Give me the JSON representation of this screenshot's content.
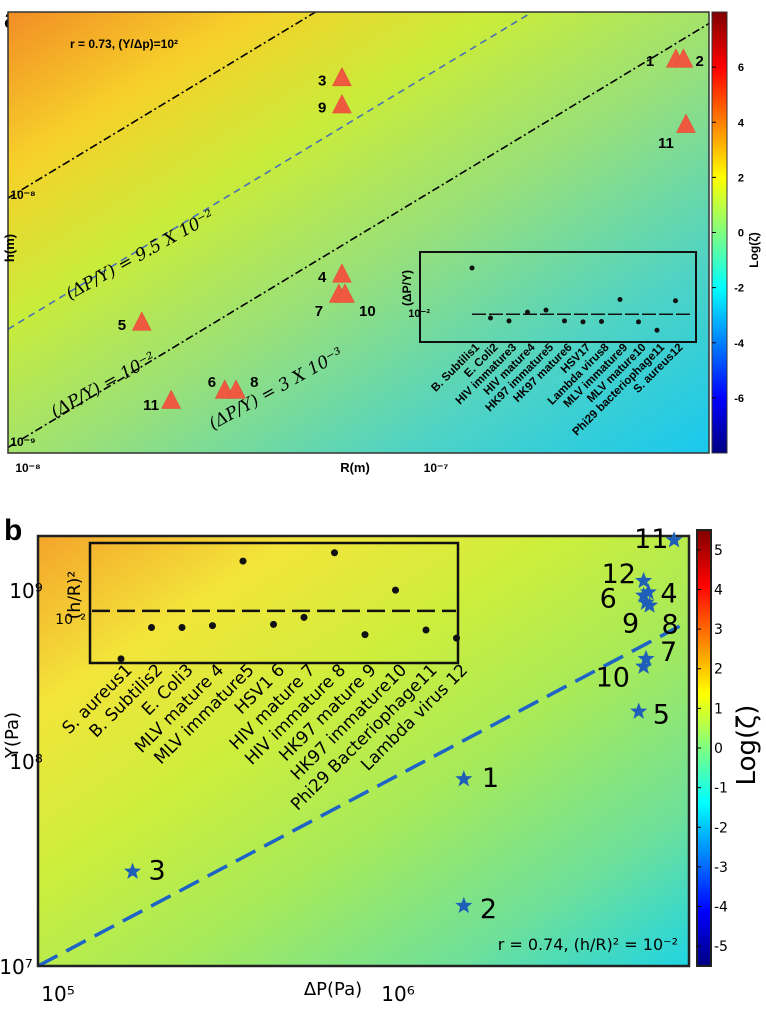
{
  "chart_data": [
    {
      "panel": "a",
      "type": "scatter",
      "title": "r = 0.73, (Y/Δp)=10²",
      "xlabel": "R(m)",
      "ylabel": "h(m)",
      "xscale": "log",
      "yscale": "log",
      "xlim": [
        1e-08,
        4.3e-07
      ],
      "ylim": [
        1e-09,
        5e-08
      ],
      "x_ticks": [
        "10⁻⁸",
        "10⁻⁷"
      ],
      "y_ticks": [
        "10⁻⁹",
        "10⁻⁸"
      ],
      "marker": "triangle",
      "points": [
        {
          "label": "1",
          "x": 3.6e-07,
          "y": 3.3e-08
        },
        {
          "label": "2",
          "x": 3.75e-07,
          "y": 3.3e-08
        },
        {
          "label": "3",
          "x": 6e-08,
          "y": 2.8e-08
        },
        {
          "label": "9",
          "x": 6e-08,
          "y": 2.2e-08
        },
        {
          "label": "11",
          "x": 3.8e-07,
          "y": 1.85e-08
        },
        {
          "label": "4",
          "x": 6e-08,
          "y": 4.9e-09
        },
        {
          "label": "7",
          "x": 5.9e-08,
          "y": 4.1e-09
        },
        {
          "label": "10",
          "x": 6.1e-08,
          "y": 4.1e-09
        },
        {
          "label": "5",
          "x": 2.05e-08,
          "y": 3.2e-09
        },
        {
          "label": "6",
          "x": 3.2e-08,
          "y": 1.75e-09
        },
        {
          "label": "8",
          "x": 3.4e-08,
          "y": 1.75e-09
        },
        {
          "label": "11",
          "x": 2.4e-08,
          "y": 1.6e-09
        }
      ],
      "lines": [
        {
          "label": "(ΔP/Y) = 9.5 X 10⁻²",
          "style": "black dash-dot",
          "ratio": 0.095
        },
        {
          "label": "(ΔP/Y) = 10⁻²",
          "style": "blue dashed",
          "ratio": 0.01
        },
        {
          "label": "(ΔP/Y) = 3 X 10⁻³",
          "style": "black dash-dot",
          "ratio": 0.003
        }
      ],
      "colorbar": {
        "label": "Log(ζ)",
        "range": [
          -8,
          8
        ],
        "ticks": [
          "6",
          "4",
          "2",
          "0",
          "-2",
          "-4",
          "-6"
        ]
      },
      "inset": {
        "ylabel": "(ΔP/Y)",
        "ytick": "10⁻²",
        "reference": 0.01,
        "categories": [
          "B. Subtilis1",
          "E. Coli2",
          "HIV immature3",
          "HIV mature4",
          "HK97 immature5",
          "HK97 mature6",
          "HSV17",
          "Lambda virus8",
          "MLV immature9",
          "MLV mature10",
          "Phi29 bacteriophage11",
          "S. aureus12"
        ],
        "values": [
          0.075,
          0.0085,
          0.0075,
          0.011,
          0.012,
          0.0075,
          0.0072,
          0.0073,
          0.019,
          0.0072,
          0.005,
          0.018
        ]
      }
    },
    {
      "panel": "b",
      "type": "scatter",
      "title": "r = 0.74, (h/R)² = 10⁻²",
      "xlabel": "ΔP(Pa)",
      "ylabel": "Y(Pa)",
      "xscale": "log",
      "yscale": "log",
      "xlim": [
        100000.0,
        8300000.0
      ],
      "ylim": [
        10000000.0,
        2000000000.0
      ],
      "x_ticks": [
        "10⁵",
        "10⁶"
      ],
      "y_ticks": [
        "10⁷",
        "10⁸",
        "10⁹"
      ],
      "marker": "star",
      "points": [
        {
          "label": "11",
          "x": 7500000.0,
          "y": 1900000000.0
        },
        {
          "label": "12",
          "x": 6100000.0,
          "y": 1150000000.0
        },
        {
          "label": "6",
          "x": 6100000.0,
          "y": 960000000.0
        },
        {
          "label": "4",
          "x": 6300000.0,
          "y": 1000000000.0
        },
        {
          "label": "9",
          "x": 6200000.0,
          "y": 880000000.0
        },
        {
          "label": "8",
          "x": 6350000.0,
          "y": 850000000.0
        },
        {
          "label": "7",
          "x": 6200000.0,
          "y": 440000000.0
        },
        {
          "label": "10",
          "x": 6100000.0,
          "y": 400000000.0
        },
        {
          "label": "5",
          "x": 5900000.0,
          "y": 230000000.0
        },
        {
          "label": "1",
          "x": 1800000.0,
          "y": 100000000.0
        },
        {
          "label": "3",
          "x": 190000.0,
          "y": 32000000.0
        },
        {
          "label": "2",
          "x": 1800000.0,
          "y": 21000000.0
        }
      ],
      "lines": [
        {
          "label": "(h/R)² = 10⁻²",
          "style": "blue dashed",
          "ratio": 100
        }
      ],
      "colorbar": {
        "label": "Log(ζ)",
        "range": [
          -5.5,
          5.5
        ],
        "ticks": [
          "5",
          "4",
          "3",
          "2",
          "1",
          "0",
          "-1",
          "-2",
          "-3",
          "-4",
          "-5"
        ]
      },
      "inset": {
        "ylabel": "(h/R)²",
        "ytick": "10⁻²",
        "reference": 0.01,
        "categories": [
          "S. aureus1",
          "B. Subtilis2",
          "E. Coli3",
          "MLV mature 4",
          "MLV immature5",
          "HSV1 6",
          "HIV mature 7",
          "HIV immature 8",
          "HK97 mature 9",
          "HK97 immature10",
          "Phi29 Bacteriophage11",
          "Lambda virus 12"
        ],
        "values": [
          0.0012,
          0.0048,
          0.0048,
          0.0052,
          0.09,
          0.0055,
          0.0075,
          0.13,
          0.0035,
          0.025,
          0.0043,
          0.003
        ]
      }
    }
  ]
}
